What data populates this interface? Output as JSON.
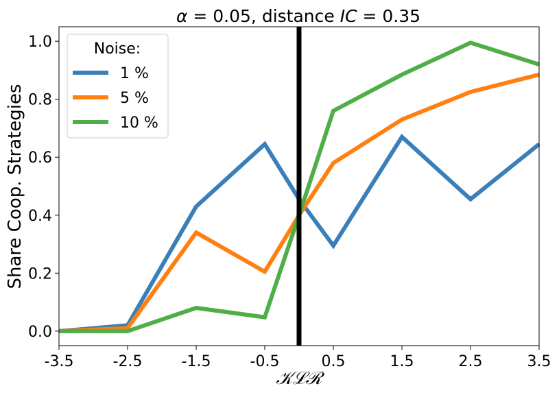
{
  "chart_data": {
    "type": "line",
    "title": "α = 0.05, distance IC = 0.35",
    "title_parts": {
      "alpha": "α",
      "eq1": " = 0.05, distance ",
      "ic": "IC",
      "eq2": " = 0.35"
    },
    "xlabel": "𝒦ℒℛ",
    "ylabel": "Share Coop. Strategies",
    "categories": [
      "-3.5",
      "-2.5",
      "-1.5",
      "-0.5",
      "0.5",
      "1.5",
      "2.5",
      "3.5"
    ],
    "x": [
      -3.5,
      -2.5,
      -1.5,
      -0.5,
      0.0,
      0.5,
      1.5,
      2.5,
      3.5
    ],
    "xlim": [
      -3.5,
      3.5
    ],
    "ylim": [
      -0.05,
      1.05
    ],
    "yticks": [
      "0.0",
      "0.2",
      "0.4",
      "0.6",
      "0.8",
      "1.0"
    ],
    "ytick_values": [
      0.0,
      0.2,
      0.4,
      0.6,
      0.8,
      1.0
    ],
    "vline": {
      "x": 0.0,
      "color": "#000000"
    },
    "legend": {
      "title": "Noise:",
      "position": "top-left"
    },
    "grid": false,
    "series": [
      {
        "name": "1 %",
        "color": "#3a7fb9",
        "values": [
          0.0,
          0.02,
          0.43,
          0.645,
          0.455,
          0.295,
          0.67,
          0.455,
          0.645
        ]
      },
      {
        "name": "5 %",
        "color": "#ff8010",
        "values": [
          0.0,
          0.01,
          0.34,
          0.205,
          0.4,
          0.58,
          0.73,
          0.825,
          0.885
        ]
      },
      {
        "name": "10 %",
        "color": "#4fae47",
        "values": [
          0.0,
          0.0,
          0.08,
          0.048,
          0.4,
          0.76,
          0.885,
          0.995,
          0.92
        ]
      }
    ]
  }
}
